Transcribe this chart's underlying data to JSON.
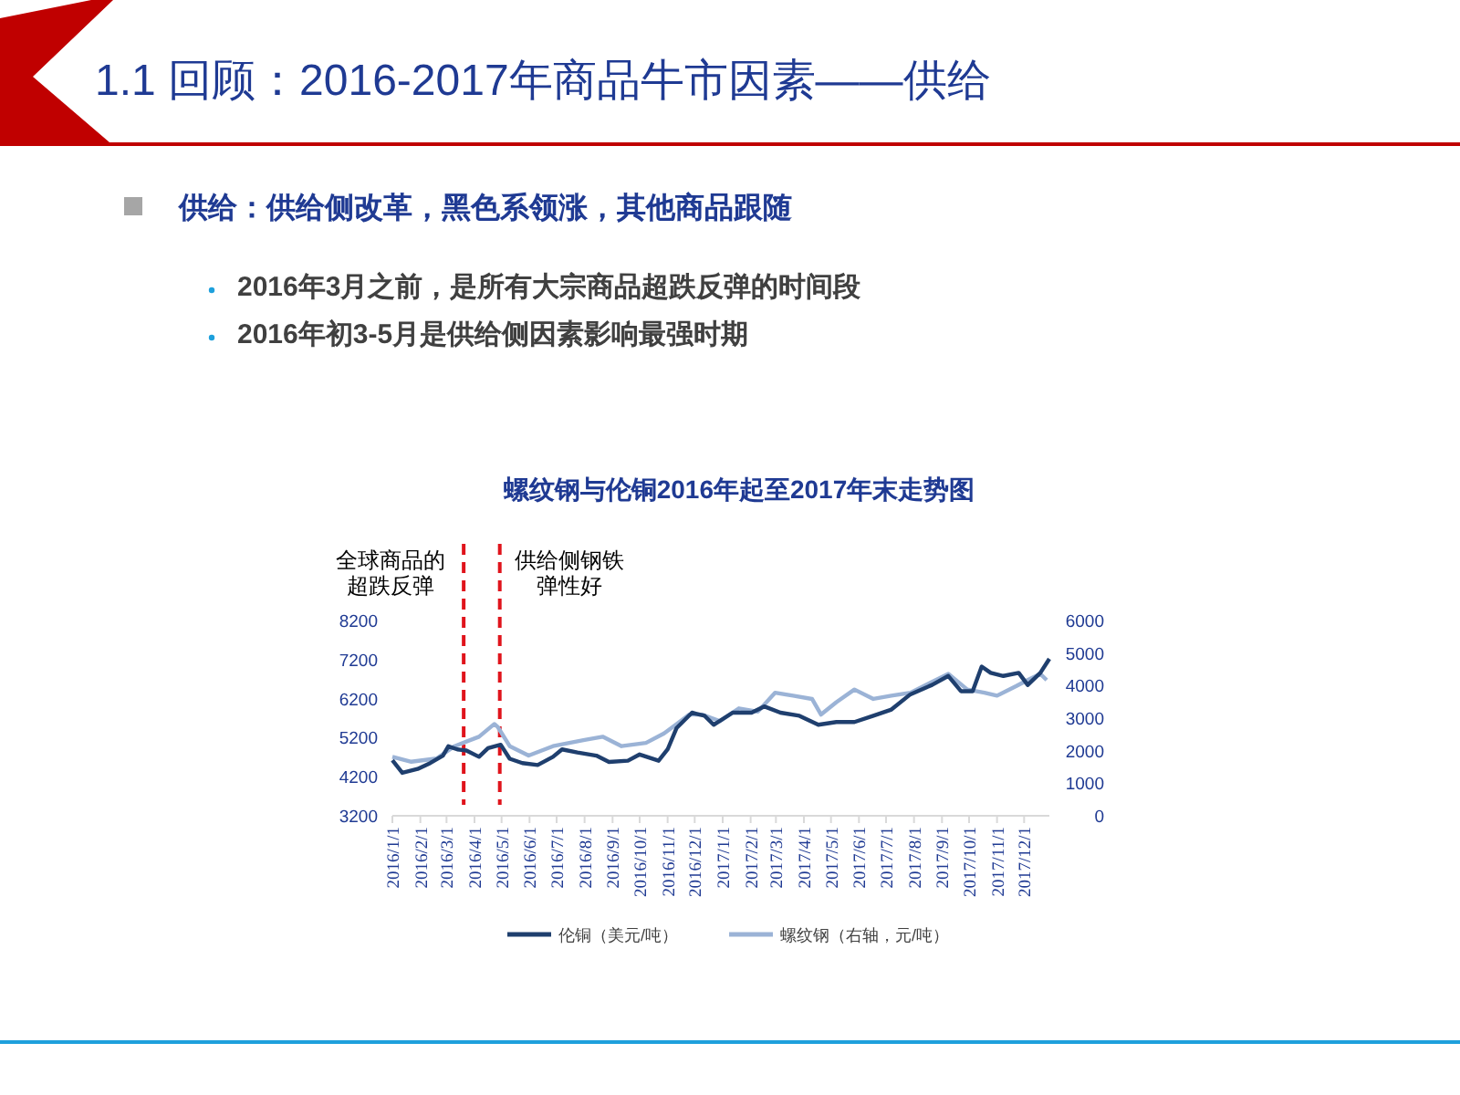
{
  "chart_data": {
    "type": "line",
    "title": "1.1 回顾：2016-2017年商品牛市因素——供给",
    "subtitle": "螺纹钢与伦铜2016年起至2017年末走势图",
    "annotations": [
      "供给：供给侧改革，黑色系领涨，其他商品跟随",
      "2016年3月之前，是所有大宗商品超跌反弹的时间段",
      "2016年初3-5月是供给侧因素影响最强时期"
    ],
    "series": [
      {
        "name": "伦铜（美元/吨）",
        "color": "#1f3f6e",
        "x": [
          "2016-01-01",
          "2016-01-12",
          "2016-01-29",
          "2016-02-12",
          "2016-02-26",
          "2016-03-03",
          "2016-03-13",
          "2016-03-23",
          "2016-04-06",
          "2016-04-16",
          "2016-04-30",
          "2016-05-10",
          "2016-05-24",
          "2016-06-10",
          "2016-06-27",
          "2016-07-07",
          "2016-07-24",
          "2016-08-14",
          "2016-08-28",
          "2016-09-18",
          "2016-10-01",
          "2016-10-22",
          "2016-11-01",
          "2016-11-11",
          "2016-11-28",
          "2016-12-12",
          "2016-12-22",
          "2017-01-12",
          "2017-02-02",
          "2017-02-16",
          "2017-03-06",
          "2017-03-27",
          "2017-04-17",
          "2017-05-07",
          "2017-05-27",
          "2017-06-17",
          "2017-07-07",
          "2017-07-28",
          "2017-08-21",
          "2017-09-08",
          "2017-09-22",
          "2017-10-05",
          "2017-10-15",
          "2017-10-25",
          "2017-11-08",
          "2017-11-25",
          "2017-12-05",
          "2017-12-19",
          "2017-12-29"
        ],
        "values": [
          4620,
          4300,
          4400,
          4550,
          4740,
          4980,
          4900,
          4870,
          4710,
          4930,
          5020,
          4660,
          4550,
          4500,
          4710,
          4900,
          4820,
          4740,
          4580,
          4610,
          4770,
          4610,
          4900,
          5450,
          5840,
          5760,
          5530,
          5840,
          5840,
          6000,
          5840,
          5760,
          5530,
          5600,
          5600,
          5760,
          5920,
          6310,
          6550,
          6780,
          6390,
          6390,
          7020,
          6860,
          6780,
          6860,
          6550,
          6860,
          7220
        ]
      },
      {
        "name": "螺纹钢（右轴，元/吨）",
        "color": "#9bb3d6",
        "axis": "y2",
        "x": [
          "2016-01-01",
          "2016-01-22",
          "2016-02-19",
          "2016-03-10",
          "2016-04-06",
          "2016-04-23",
          "2016-04-27",
          "2016-05-10",
          "2016-05-31",
          "2016-06-27",
          "2016-08-01",
          "2016-08-21",
          "2016-09-11",
          "2016-10-08",
          "2016-10-28",
          "2016-11-11",
          "2016-11-25",
          "2016-12-09",
          "2016-12-29",
          "2017-01-19",
          "2017-02-09",
          "2017-02-28",
          "2017-03-20",
          "2017-04-10",
          "2017-04-20",
          "2017-05-07",
          "2017-05-27",
          "2017-06-17",
          "2017-07-07",
          "2017-07-28",
          "2017-08-18",
          "2017-09-08",
          "2017-09-29",
          "2017-10-18",
          "2017-11-01",
          "2017-11-22",
          "2017-12-05",
          "2017-12-19",
          "2017-12-26"
        ],
        "values": [
          1810,
          1660,
          1760,
          2140,
          2430,
          2820,
          2720,
          2140,
          1850,
          2140,
          2330,
          2430,
          2140,
          2240,
          2530,
          2820,
          3110,
          3110,
          2910,
          3300,
          3200,
          3780,
          3690,
          3590,
          3110,
          3490,
          3880,
          3590,
          3690,
          3780,
          4070,
          4360,
          3880,
          3780,
          3690,
          3980,
          4170,
          4360,
          4170
        ]
      }
    ],
    "xlim": [
      "2016-01-01",
      "2017-12-29"
    ],
    "xticks": [
      {
        "value": "2016-01-01",
        "label": "2016/1/1"
      },
      {
        "value": "2016-02-01",
        "label": "2016/2/1"
      },
      {
        "value": "2016-03-01",
        "label": "2016/3/1"
      },
      {
        "value": "2016-04-01",
        "label": "2016/4/1"
      },
      {
        "value": "2016-05-01",
        "label": "2016/5/1"
      },
      {
        "value": "2016-06-01",
        "label": "2016/6/1"
      },
      {
        "value": "2016-07-01",
        "label": "2016/7/1"
      },
      {
        "value": "2016-08-01",
        "label": "2016/8/1"
      },
      {
        "value": "2016-09-01",
        "label": "2016/9/1"
      },
      {
        "value": "2016-10-01",
        "label": "2016/10/1"
      },
      {
        "value": "2016-11-01",
        "label": "2016/11/1"
      },
      {
        "value": "2016-12-01",
        "label": "2016/12/1"
      },
      {
        "value": "2017-01-01",
        "label": "2017/1/1"
      },
      {
        "value": "2017-02-01",
        "label": "2017/2/1"
      },
      {
        "value": "2017-03-01",
        "label": "2017/3/1"
      },
      {
        "value": "2017-04-01",
        "label": "2017/4/1"
      },
      {
        "value": "2017-05-01",
        "label": "2017/5/1"
      },
      {
        "value": "2017-06-01",
        "label": "2017/6/1"
      },
      {
        "value": "2017-07-01",
        "label": "2017/7/1"
      },
      {
        "value": "2017-08-01",
        "label": "2017/8/1"
      },
      {
        "value": "2017-09-01",
        "label": "2017/9/1"
      },
      {
        "value": "2017-10-01",
        "label": "2017/10/1"
      },
      {
        "value": "2017-11-01",
        "label": "2017/11/1"
      },
      {
        "value": "2017-12-01",
        "label": "2017/12/1"
      }
    ],
    "ylim": [
      3200,
      8200
    ],
    "yticks": [
      3200,
      4200,
      5200,
      6200,
      7200,
      8200
    ],
    "y2lim": [
      0,
      6000
    ],
    "y2ticks": [
      0,
      1000,
      2000,
      3000,
      4000,
      5000,
      6000
    ],
    "ref_lines": [
      {
        "axis": "x",
        "value": "2016-03-20",
        "label": "全球商品的超跌反弹",
        "color": "#e0141c",
        "line_style": "dashed"
      },
      {
        "axis": "x",
        "value": "2016-04-29",
        "label": "供给侧钢铁弹性好",
        "color": "#e0141c",
        "line_style": "dashed"
      }
    ],
    "legend": "bottom",
    "grid": false,
    "line_style": "solid"
  }
}
